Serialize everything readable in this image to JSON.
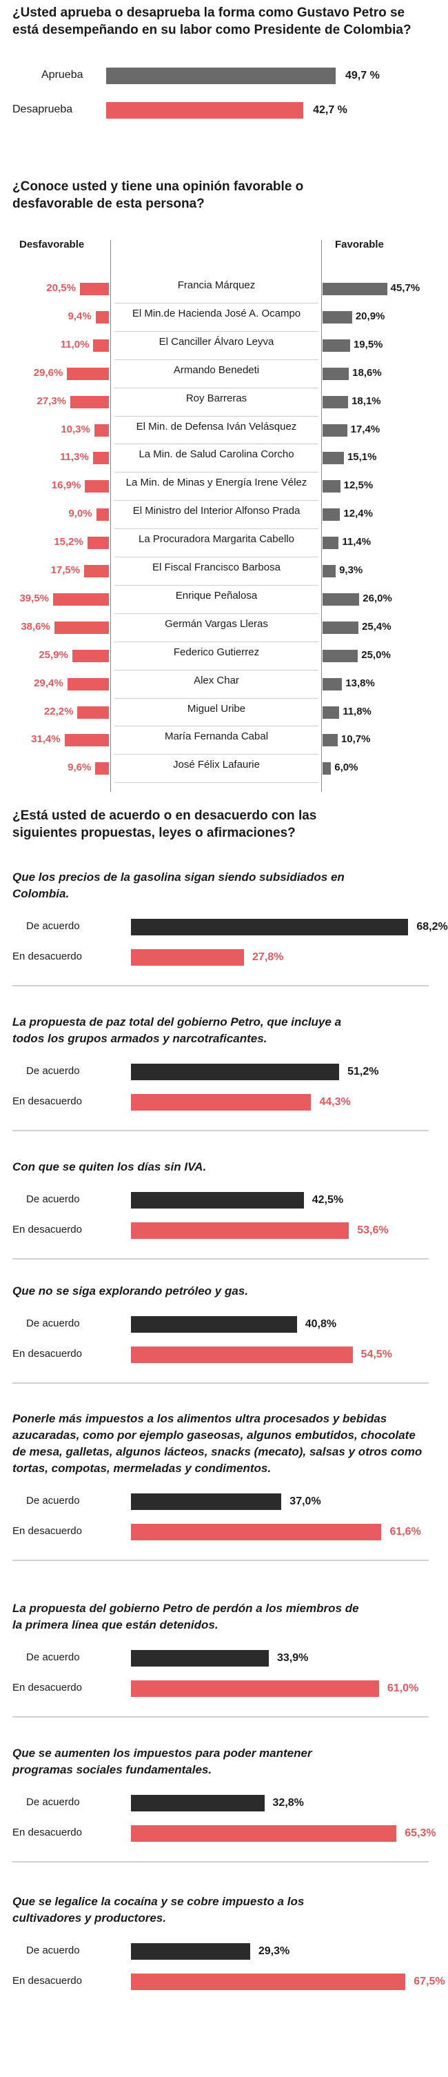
{
  "approval": {
    "question": "¿Usted aprueba o desaprueba la forma como Gustavo Petro se está desempeñando en su labor como Presidente de Colombia?",
    "rows": [
      {
        "label": "Aprueba",
        "value": 49.7,
        "display": "49,7 %",
        "color": "#6a6a6a"
      },
      {
        "label": "Desaprueba",
        "value": 42.7,
        "display": "42,7 %",
        "color": "#e85c5f"
      }
    ]
  },
  "favorability": {
    "question": "¿Conoce usted y tiene una opinión favorable o desfavorable de esta persona?",
    "left_header": "Desfavorable",
    "right_header": "Favorable",
    "people": [
      {
        "name": "Francia Márquez",
        "unfav": 20.5,
        "unfav_d": "20,5%",
        "fav": 45.7,
        "fav_d": "45,7%"
      },
      {
        "name": "El Min.de Hacienda José A. Ocampo",
        "unfav": 9.4,
        "unfav_d": "9,4%",
        "fav": 20.9,
        "fav_d": "20,9%"
      },
      {
        "name": "El Canciller Álvaro Leyva",
        "unfav": 11.0,
        "unfav_d": "11,0%",
        "fav": 19.5,
        "fav_d": "19,5%"
      },
      {
        "name": "Armando Benedeti",
        "unfav": 29.6,
        "unfav_d": "29,6%",
        "fav": 18.6,
        "fav_d": "18,6%"
      },
      {
        "name": "Roy Barreras",
        "unfav": 27.3,
        "unfav_d": "27,3%",
        "fav": 18.1,
        "fav_d": "18,1%"
      },
      {
        "name": "El Min. de Defensa Iván Velásquez",
        "unfav": 10.3,
        "unfav_d": "10,3%",
        "fav": 17.4,
        "fav_d": "17,4%"
      },
      {
        "name": "La Min. de Salud Carolina Corcho",
        "unfav": 11.3,
        "unfav_d": "11,3%",
        "fav": 15.1,
        "fav_d": "15,1%"
      },
      {
        "name": "La Min. de Minas y Energía Irene Vélez",
        "unfav": 16.9,
        "unfav_d": "16,9%",
        "fav": 12.5,
        "fav_d": "12,5%"
      },
      {
        "name": "El Ministro del Interior Alfonso Prada",
        "unfav": 9.0,
        "unfav_d": "9,0%",
        "fav": 12.4,
        "fav_d": "12,4%"
      },
      {
        "name": "La Procuradora Margarita Cabello",
        "unfav": 15.2,
        "unfav_d": "15,2%",
        "fav": 11.4,
        "fav_d": "11,4%"
      },
      {
        "name": "El Fiscal Francisco Barbosa",
        "unfav": 17.5,
        "unfav_d": "17,5%",
        "fav": 9.3,
        "fav_d": "9,3%"
      },
      {
        "name": "Enrique Peñalosa",
        "unfav": 39.5,
        "unfav_d": "39,5%",
        "fav": 26.0,
        "fav_d": "26,0%"
      },
      {
        "name": "Germán Vargas Lleras",
        "unfav": 38.6,
        "unfav_d": "38,6%",
        "fav": 25.4,
        "fav_d": "25,4%"
      },
      {
        "name": "Federico Gutierrez",
        "unfav": 25.9,
        "unfav_d": "25,9%",
        "fav": 25.0,
        "fav_d": "25,0%"
      },
      {
        "name": "Alex Char",
        "unfav": 29.4,
        "unfav_d": "29,4%",
        "fav": 13.8,
        "fav_d": "13,8%"
      },
      {
        "name": "Miguel Uribe",
        "unfav": 22.2,
        "unfav_d": "22,2%",
        "fav": 11.8,
        "fav_d": "11,8%"
      },
      {
        "name": "María Fernanda Cabal",
        "unfav": 31.4,
        "unfav_d": "31,4%",
        "fav": 10.7,
        "fav_d": "10,7%"
      },
      {
        "name": "José Félix Lafaurie",
        "unfav": 9.6,
        "unfav_d": "9,6%",
        "fav": 6.0,
        "fav_d": "6,0%"
      }
    ]
  },
  "proposals": {
    "question": "¿Está usted de acuerdo o en desacuerdo con las siguientes propuestas, leyes o afirmaciones?",
    "agree_label": "De acuerdo",
    "disagree_label": "En desacuerdo",
    "items": [
      {
        "text": "Que los precios de la gasolina sigan siendo subsidiados en Colombia.",
        "agree": 68.2,
        "agree_d": "68,2%",
        "disagree": 27.8,
        "disagree_d": "27,8%"
      },
      {
        "text": "La propuesta de paz total del gobierno Petro, que incluye a todos los grupos armados y narcotraficantes.",
        "agree": 51.2,
        "agree_d": "51,2%",
        "disagree": 44.3,
        "disagree_d": "44,3%"
      },
      {
        "text": "Con que se quiten los días sin IVA.",
        "agree": 42.5,
        "agree_d": "42,5%",
        "disagree": 53.6,
        "disagree_d": "53,6%"
      },
      {
        "text": "Que no se siga explorando petróleo y gas.",
        "agree": 40.8,
        "agree_d": "40,8%",
        "disagree": 54.5,
        "disagree_d": "54,5%"
      },
      {
        "text": "Ponerle más impuestos a los alimentos ultra procesados y bebidas azucaradas, como por ejemplo gaseosas, algunos embutidos, chocolate de mesa, galletas, algunos lácteos, snacks (mecato), salsas y otros como tortas, compotas, mermeladas y condimentos.",
        "agree": 37.0,
        "agree_d": "37,0%",
        "disagree": 61.6,
        "disagree_d": "61,6%"
      },
      {
        "text": "La propuesta del gobierno Petro de perdón a los miembros de la primera línea que están detenidos.",
        "agree": 33.9,
        "agree_d": "33,9%",
        "disagree": 61.0,
        "disagree_d": "61,0%"
      },
      {
        "text": "Que se aumenten los impuestos para poder mantener programas sociales fundamentales.",
        "agree": 32.8,
        "agree_d": "32,8%",
        "disagree": 65.3,
        "disagree_d": "65,3%"
      },
      {
        "text": "Que se legalice la cocaína y se cobre impuesto a los cultivadores y productores.",
        "agree": 29.3,
        "agree_d": "29,3%",
        "disagree": 67.5,
        "disagree_d": "67,5%"
      }
    ]
  },
  "colors": {
    "dark": "#2b2b2b",
    "grey": "#6a6a6a",
    "red": "#e85c5f",
    "red_text": "#e0595c"
  }
}
